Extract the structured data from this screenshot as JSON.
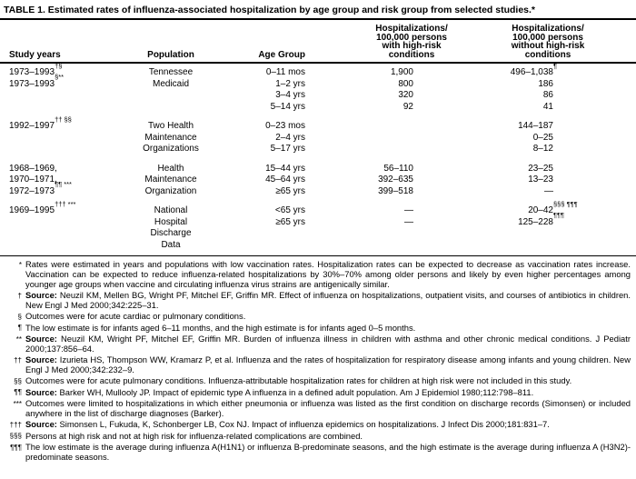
{
  "title": "TABLE 1. Estimated rates of influenza-associated hospitalization by age group and risk group from selected studies.*",
  "table": {
    "header": {
      "col1": "Study years",
      "col2": "Population",
      "col3": "Age Group",
      "col4": "Hospitalizations/\n100,000 persons\nwith high-risk\nconditions",
      "col5": "Hospitalizations/\n100,000 persons\nwithout high-risk\nconditions"
    },
    "groups": [
      {
        "rows": [
          {
            "study_years": "1973–1993",
            "study_sup": "†§",
            "population": "Tennessee",
            "age_group": "0–11 mos",
            "with_risk": "1,900",
            "without_risk": "496–1,038",
            "without_risk_sup": "¶"
          },
          {
            "study_years": "1973–1993",
            "study_sup": "§**",
            "population": "Medicaid",
            "age_group": "1–2 yrs",
            "with_risk": "800",
            "without_risk": "186"
          },
          {
            "age_group": "3–4 yrs",
            "with_risk": "320",
            "without_risk": "86"
          },
          {
            "age_group": "5–14 yrs",
            "with_risk": "92",
            "without_risk": "41"
          }
        ]
      },
      {
        "rows": [
          {
            "study_years": "1992–1997",
            "study_sup": "†† §§",
            "population": "Two Health",
            "age_group": "0–23 mos",
            "without_risk": "144–187"
          },
          {
            "population": "Maintenance",
            "age_group": "2–4 yrs",
            "without_risk": "0–25"
          },
          {
            "population": "Organizations",
            "age_group": "5–17 yrs",
            "without_risk": "8–12"
          }
        ]
      },
      {
        "rows": [
          {
            "study_years": "1968–1969,",
            "population": "Health",
            "age_group": "15–44 yrs",
            "with_risk": "56–110",
            "without_risk": "23–25"
          },
          {
            "study_years": "1970–1971,",
            "population": "Maintenance",
            "age_group": "45–64 yrs",
            "with_risk": "392–635",
            "without_risk": "13–23"
          },
          {
            "study_years": "1972–1973",
            "study_sup": "¶¶ ***",
            "population": "Organization",
            "age_group": "≥65 yrs",
            "with_risk": "399–518",
            "without_risk": "—"
          }
        ]
      },
      {
        "rows": [
          {
            "study_years": "1969–1995",
            "study_sup": "††† ***",
            "population": "National",
            "age_group": "<65 yrs",
            "with_risk": "—",
            "without_risk": "20–42",
            "without_risk_sup": "§§§ ¶¶¶"
          },
          {
            "population": "Hospital",
            "age_group": "≥65 yrs",
            "with_risk": "—",
            "without_risk": "125–228",
            "without_risk_sup": "¶¶¶"
          },
          {
            "population": "Discharge"
          },
          {
            "population": "Data"
          }
        ]
      }
    ]
  },
  "footnotes": [
    {
      "marker": "*",
      "bold": "",
      "text": "Rates were estimated in years and populations with low vaccination rates. Hospitalization rates can be expected to decrease as vaccination rates increase. Vaccination can be expected to reduce influenza-related hospitalizations by 30%–70% among older persons and likely by even higher percentages among younger age groups when vaccine and circulating influenza virus strains are antigenically similar."
    },
    {
      "marker": "†",
      "bold": "Source:",
      "text": "Neuzil KM, Mellen BG, Wright PF, Mitchel EF, Griffin MR. Effect of influenza on hospitalizations, outpatient visits, and courses of antibiotics in children. New Engl J Med 2000;342:225–31."
    },
    {
      "marker": "§",
      "bold": "",
      "text": "Outcomes were for acute cardiac or pulmonary conditions."
    },
    {
      "marker": "¶",
      "bold": "",
      "text": "The low estimate is for infants aged 6–11 months, and the high estimate is for infants aged 0–5 months."
    },
    {
      "marker": "**",
      "bold": "Source:",
      "text": "Neuzil KM, Wright PF, Mitchel EF, Griffin MR. Burden of influenza illness in children with asthma and other chronic medical conditions. J Pediatr 2000;137:856–64."
    },
    {
      "marker": "††",
      "bold": "Source:",
      "text": "Izurieta HS, Thompson WW, Kramarz P, et al. Influenza and the rates of hospitalization for respiratory disease among infants and young children. New Engl J Med 2000;342:232–9."
    },
    {
      "marker": "§§",
      "bold": "",
      "text": "Outcomes were for acute pulmonary conditions. Influenza-attributable hospitalization rates for children at high risk were not included in this study."
    },
    {
      "marker": "¶¶",
      "bold": "Source:",
      "text": "Barker WH, Mullooly JP. Impact of epidemic type A influenza in a defined adult population. Am J Epidemiol 1980;112:798–811."
    },
    {
      "marker": "***",
      "bold": "",
      "text": "Outcomes were limited to hospitalizations in which either pneumonia or influenza was listed as the first condition on discharge records (Simonsen) or included anywhere in the list of discharge diagnoses (Barker)."
    },
    {
      "marker": "†††",
      "bold": "Source:",
      "text": "Simonsen L, Fukuda, K, Schonberger LB, Cox NJ. Impact of influenza epidemics on hospitalizations. J Infect Dis 2000;181:831–7."
    },
    {
      "marker": "§§§",
      "bold": "",
      "text": "Persons at high risk and not at high risk for influenza-related complications are combined."
    },
    {
      "marker": "¶¶¶",
      "bold": "",
      "text": "The low estimate is the average during influenza A(H1N1) or influenza B-predominate seasons, and the high estimate is the average during influenza A (H3N2)-predominate seasons."
    }
  ]
}
